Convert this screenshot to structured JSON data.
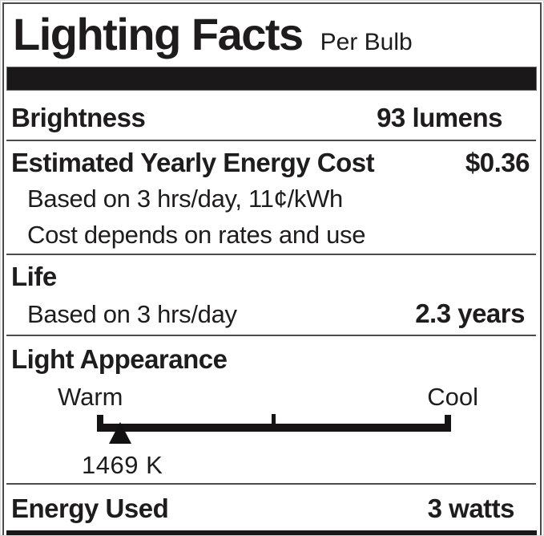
{
  "colors": {
    "ink": "#1e1c1d",
    "bar_black": "#1b1819",
    "divider_gray": "#4c4c4c",
    "background": "#ffffff"
  },
  "header": {
    "title": "Lighting Facts",
    "subtitle": "Per Bulb"
  },
  "brightness": {
    "label": "Brightness",
    "value": "93 lumens"
  },
  "energy_cost": {
    "label": "Estimated Yearly Energy Cost",
    "value": "$0.36",
    "notes": [
      "Based on 3 hrs/day, 11¢/kWh",
      "Cost depends on rates and use"
    ]
  },
  "life": {
    "label": "Life",
    "note": "Based on 3 hrs/day",
    "value": "2.3 years"
  },
  "light_appearance": {
    "label": "Light Appearance",
    "scale_left_end": "Warm",
    "scale_right_end": "Cool",
    "marker_icon": "triangle-up-icon",
    "marker_value": "1469 K"
  },
  "energy_used": {
    "label": "Energy Used",
    "value": "3 watts"
  }
}
